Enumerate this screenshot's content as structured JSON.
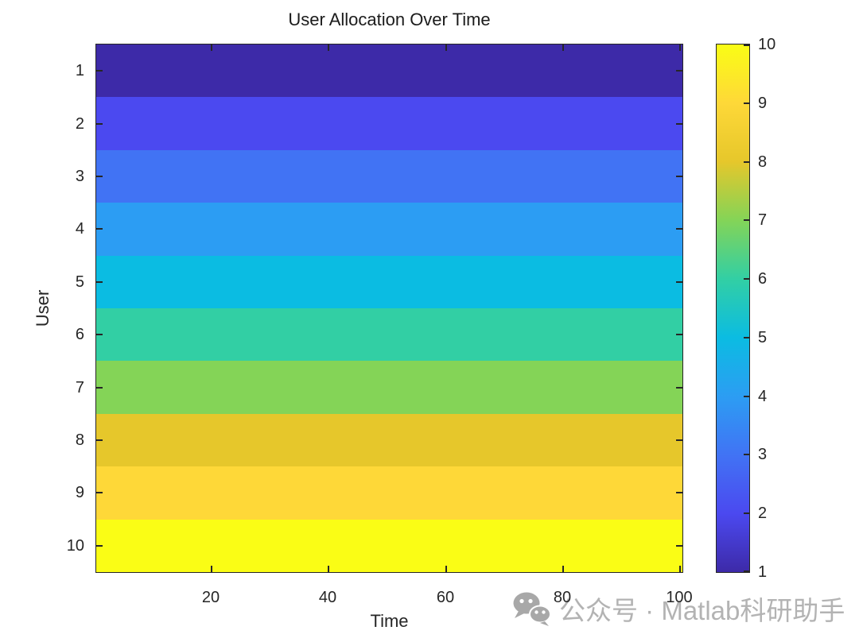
{
  "watermark": {
    "icon": "wechat-icon",
    "text": "公众号 · Matlab科研助手",
    "color": "#b3b3b3"
  },
  "chart_data": {
    "type": "heatmap",
    "title": "User Allocation Over Time",
    "xlabel": "Time",
    "ylabel": "User",
    "x_range": [
      0.5,
      100.5
    ],
    "x_ticks": [
      20,
      40,
      60,
      80,
      100
    ],
    "y_ticks": [
      1,
      2,
      3,
      4,
      5,
      6,
      7,
      8,
      9,
      10
    ],
    "grid": false,
    "note": "Each user row holds a constant value equal to its user index across all time steps 1-100",
    "rows": [
      {
        "user": 1,
        "value": 1,
        "color": "#3D2AA8"
      },
      {
        "user": 2,
        "value": 2,
        "color": "#4B49F0"
      },
      {
        "user": 3,
        "value": 3,
        "color": "#4173F4"
      },
      {
        "user": 4,
        "value": 4,
        "color": "#2C9DF3"
      },
      {
        "user": 5,
        "value": 5,
        "color": "#0BBCE2"
      },
      {
        "user": 6,
        "value": 6,
        "color": "#32CFA4"
      },
      {
        "user": 7,
        "value": 7,
        "color": "#84D457"
      },
      {
        "user": 8,
        "value": 8,
        "color": "#E6C72B"
      },
      {
        "user": 9,
        "value": 9,
        "color": "#FED838"
      },
      {
        "user": 10,
        "value": 10,
        "color": "#FAFD15"
      }
    ],
    "colorbar": {
      "colormap": "parula",
      "min": 1,
      "max": 10,
      "ticks": [
        1,
        2,
        3,
        4,
        5,
        6,
        7,
        8,
        9,
        10
      ]
    },
    "colors": {
      "axis": "#262626",
      "title": "#1b1b1b",
      "background": "#ffffff"
    }
  }
}
